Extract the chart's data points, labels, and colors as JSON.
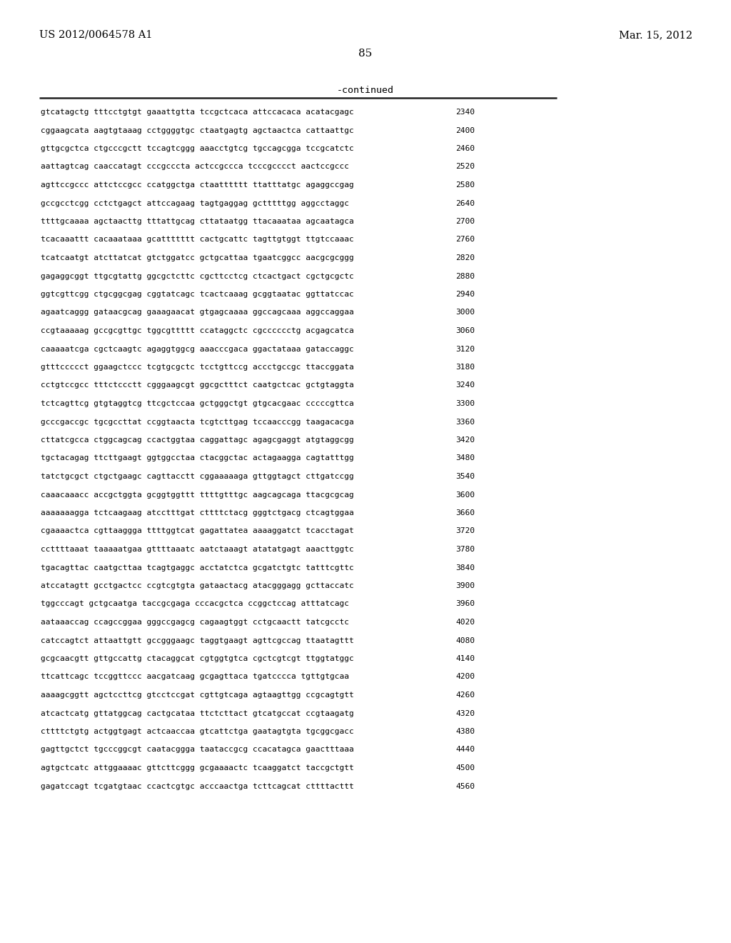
{
  "header_left": "US 2012/0064578 A1",
  "header_right": "Mar. 15, 2012",
  "page_number": "85",
  "continued_label": "-continued",
  "background_color": "#ffffff",
  "text_color": "#000000",
  "font_size_header": 10.5,
  "font_size_body": 8.0,
  "font_size_page": 11,
  "font_size_continued": 9.5,
  "sequence_lines": [
    [
      "gtcatagctg tttcctgtgt gaaattgtta tccgctcaca attccacaca acatacgagc",
      "2340"
    ],
    [
      "cggaagcata aagtgtaaag cctggggtgc ctaatgagtg agctaactca cattaattgc",
      "2400"
    ],
    [
      "gttgcgctca ctgcccgctt tccagtcggg aaacctgtcg tgccagcgga tccgcatctc",
      "2460"
    ],
    [
      "aattagtcag caaccatagt cccgcccta actccgccca tcccgcccct aactccgccc",
      "2520"
    ],
    [
      "agttccgccc attctccgcc ccatggctga ctaatttttt ttatttatgc agaggccgag",
      "2580"
    ],
    [
      "gccgcctcgg cctctgagct attccagaag tagtgaggag gctttttgg aggcctaggc",
      "2640"
    ],
    [
      "ttttgcaaaa agctaacttg tttattgcag cttataatgg ttacaaataa agcaatagca",
      "2700"
    ],
    [
      "tcacaaattt cacaaataaa gcattttttt cactgcattc tagttgtggt ttgtccaaac",
      "2760"
    ],
    [
      "tcatcaatgt atcttatcat gtctggatcc gctgcattaa tgaatcggcc aacgcgcggg",
      "2820"
    ],
    [
      "gagaggcggt ttgcgtattg ggcgctcttc cgcttcctcg ctcactgact cgctgcgctc",
      "2880"
    ],
    [
      "ggtcgttcgg ctgcggcgag cggtatcagc tcactcaaag gcggtaatac ggttatccac",
      "2940"
    ],
    [
      "agaatcaggg gataacgcag gaaagaacat gtgagcaaaa ggccagcaaa aggccaggaa",
      "3000"
    ],
    [
      "ccgtaaaaag gccgcgttgc tggcgttttt ccataggctc cgcccccctg acgagcatca",
      "3060"
    ],
    [
      "caaaaatcga cgctcaagtc agaggtggcg aaacccgaca ggactataaa gataccaggc",
      "3120"
    ],
    [
      "gtttccccct ggaagctccc tcgtgcgctc tcctgttccg accctgccgc ttaccggata",
      "3180"
    ],
    [
      "cctgtccgcc tttctccctt cgggaagcgt ggcgctttct caatgctcac gctgtaggta",
      "3240"
    ],
    [
      "tctcagttcg gtgtaggtcg ttcgctccaa gctgggctgt gtgcacgaac cccccgttca",
      "3300"
    ],
    [
      "gcccgaccgc tgcgccttat ccggtaacta tcgtcttgag tccaacccgg taagacacga",
      "3360"
    ],
    [
      "cttatcgcca ctggcagcag ccactggtaa caggattagc agagcgaggt atgtaggcgg",
      "3420"
    ],
    [
      "tgctacagag ttcttgaagt ggtggcctaa ctacggctac actagaagga cagtatttgg",
      "3480"
    ],
    [
      "tatctgcgct ctgctgaagc cagttacctt cggaaaaaga gttggtagct cttgatccgg",
      "3540"
    ],
    [
      "caaacaaacc accgctggta gcggtggttt ttttgtttgc aagcagcaga ttacgcgcag",
      "3600"
    ],
    [
      "aaaaaaagga tctcaagaag atcctttgat cttttctacg gggtctgacg ctcagtggaa",
      "3660"
    ],
    [
      "cgaaaactca cgttaaggga ttttggtcat gagattatea aaaaggatct tcacctagat",
      "3720"
    ],
    [
      "ccttttaaat taaaaatgaa gttttaaatc aatctaaagt atatatgagt aaacttggtc",
      "3780"
    ],
    [
      "tgacagttac caatgcttaa tcagtgaggc acctatctca gcgatctgtc tatttcgttc",
      "3840"
    ],
    [
      "atccatagtt gcctgactcc ccgtcgtgta gataactacg atacgggagg gcttaccatc",
      "3900"
    ],
    [
      "tggcccagt gctgcaatga taccgcgaga cccacgctca ccggctccag atttatcagc",
      "3960"
    ],
    [
      "aataaaccag ccagccggaa gggccgagcg cagaagtggt cctgcaactt tatcgcctc",
      "4020"
    ],
    [
      "catccagtct attaattgtt gccgggaagc taggtgaagt agttcgccag ttaatagttt",
      "4080"
    ],
    [
      "gcgcaacgtt gttgccattg ctacaggcat cgtggtgtca cgctcgtcgt ttggtatggc",
      "4140"
    ],
    [
      "ttcattcagc tccggttccc aacgatcaag gcgagttaca tgatcccca tgttgtgcaa",
      "4200"
    ],
    [
      "aaaagcggtt agctccttcg gtcctccgat cgttgtcaga agtaagttgg ccgcagtgtt",
      "4260"
    ],
    [
      "atcactcatg gttatggcag cactgcataa ttctcttact gtcatgccat ccgtaagatg",
      "4320"
    ],
    [
      "cttttctgtg actggtgagt actcaaccaa gtcattctga gaatagtgta tgcggcgacc",
      "4380"
    ],
    [
      "gagttgctct tgcccggcgt caatacggga taataccgcg ccacatagca gaactttaaa",
      "4440"
    ],
    [
      "agtgctcatc attggaaaac gttcttcggg gcgaaaactc tcaaggatct taccgctgtt",
      "4500"
    ],
    [
      "gagatccagt tcgatgtaac ccactcgtgc acccaactga tcttcagcat cttttacttt",
      "4560"
    ]
  ]
}
